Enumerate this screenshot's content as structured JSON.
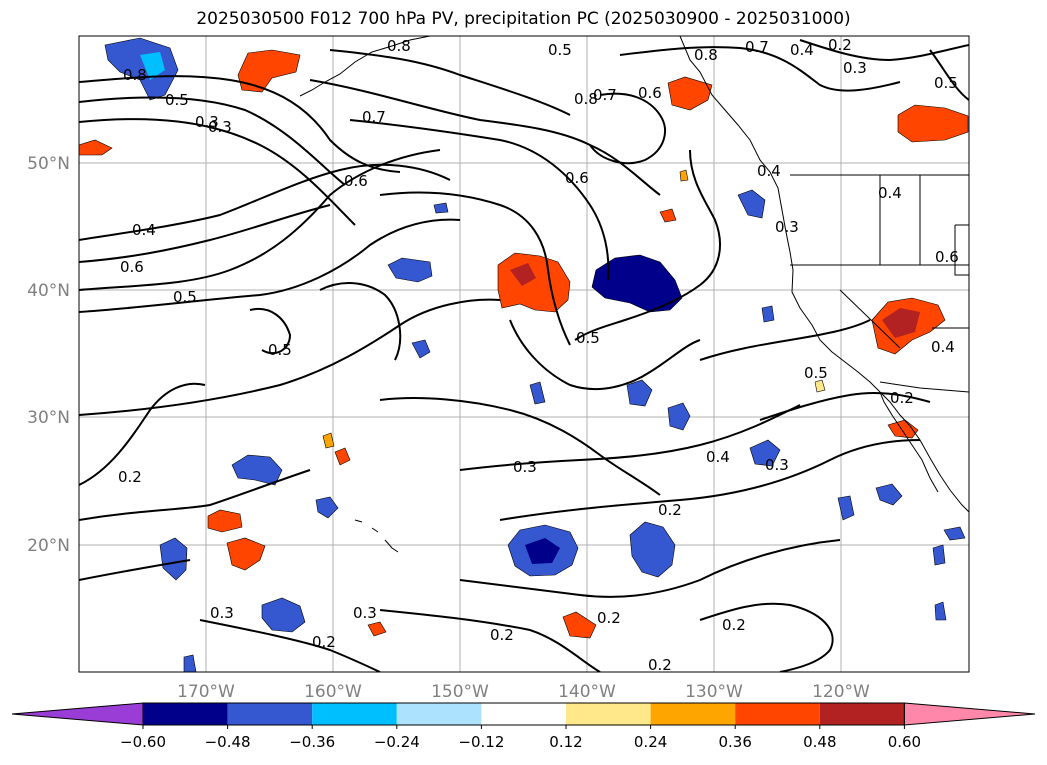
{
  "title": "2025030500 F012 700 hPa PV, precipitation PC (2025030900 - 2025031000)",
  "colors": {
    "ocean": "#ffffff",
    "contour": "#000000",
    "grid": "#b0b0b0",
    "tick_label": "#808080"
  },
  "lon_labels": [
    "170°W",
    "160°W",
    "150°W",
    "140°W",
    "130°W",
    "120°W"
  ],
  "lat_labels": [
    "50°N",
    "40°N",
    "30°N",
    "20°N"
  ],
  "contour_labels": [
    "0.5",
    "0.8",
    "0.8",
    "0.8",
    "0.7",
    "0.6",
    "0.4",
    "0.2",
    "0.3",
    "0.5",
    "0.5",
    "0.3",
    "0.7",
    "0.8",
    "0.7",
    "0.6",
    "0.4",
    "0.6",
    "0.6",
    "0.4",
    "0.3",
    "0.4",
    "0.6",
    "0.5",
    "0.5",
    "0.5",
    "0.5",
    "0.4",
    "0.2",
    "0.2",
    "0.3",
    "0.4",
    "0.3",
    "0.2",
    "0.3",
    "0.3",
    "0.2",
    "0.2",
    "0.2",
    "0.2",
    "0.2",
    "0.3"
  ],
  "colorbar": {
    "colors": [
      "#9a3cd6",
      "#00008b",
      "#3558d0",
      "#00bfff",
      "#ade2ff",
      "#ffffff",
      "#ffe88a",
      "#ffa500",
      "#ff4500",
      "#b22222",
      "#ff88aa"
    ],
    "tick_labels": [
      "−0.60",
      "−0.48",
      "−0.36",
      "−0.24",
      "−0.12",
      "0.12",
      "0.24",
      "0.36",
      "0.48",
      "0.60"
    ]
  }
}
